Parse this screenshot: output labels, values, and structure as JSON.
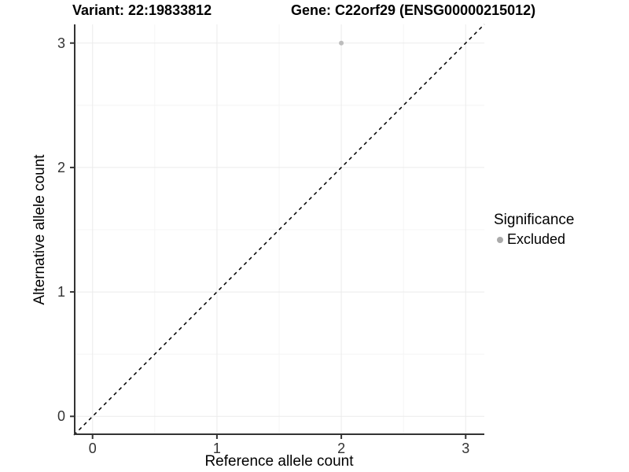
{
  "header": {
    "variant_title": "Variant: 22:19833812",
    "gene_title": "Gene: C22orf29 (ENSG00000215012)"
  },
  "legend": {
    "title": "Significance",
    "items": [
      {
        "label": "Excluded",
        "color": "#aaaaaa"
      }
    ]
  },
  "colors": {
    "background": "#ffffff",
    "grid_major": "#ebebeb",
    "grid_minor": "#f4f4f4",
    "axis_line": "#333333",
    "tick_mark": "#333333",
    "tick_text": "#333333",
    "title_text": "#000000",
    "point": "#bdbdbd",
    "reference_line": "#000000"
  },
  "chart_data": {
    "type": "scatter",
    "title": "Variant: 22:19833812   Gene: C22orf29 (ENSG00000215012)",
    "xlabel": "Reference allele count",
    "ylabel": "Alternative allele count",
    "xlim": [
      -0.15,
      3.15
    ],
    "ylim": [
      -0.15,
      3.15
    ],
    "x_ticks": [
      0,
      1,
      2,
      3
    ],
    "y_ticks": [
      0,
      1,
      2,
      3
    ],
    "x_minor_ticks": [
      0.5,
      1.5,
      2.5
    ],
    "y_minor_ticks": [
      0.5,
      1.5,
      2.5
    ],
    "grid": "major and minor, light gray on white",
    "legend_position": "right",
    "series": [
      {
        "name": "Excluded",
        "color": "#bdbdbd",
        "points": [
          {
            "x": 2,
            "y": 3
          }
        ]
      }
    ],
    "reference_line": {
      "slope": 1,
      "intercept": 0,
      "style": "dashed",
      "color": "#000000"
    }
  }
}
